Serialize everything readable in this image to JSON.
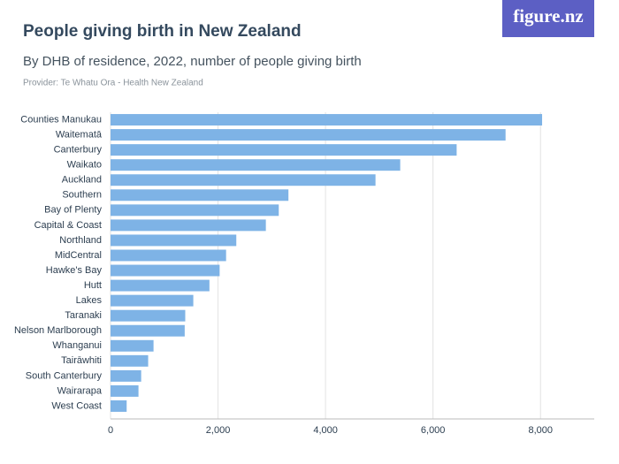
{
  "brand": "figure.nz",
  "chart_data": {
    "type": "bar",
    "orientation": "horizontal",
    "title": "People giving birth in New Zealand",
    "subtitle": "By DHB of residence, 2022, number of people giving birth",
    "source": "Provider: Te Whatu Ora - Health New Zealand",
    "categories": [
      "Counties Manukau",
      "Waitematā",
      "Canterbury",
      "Waikato",
      "Auckland",
      "Southern",
      "Bay of Plenty",
      "Capital & Coast",
      "Northland",
      "MidCentral",
      "Hawke's Bay",
      "Hutt",
      "Lakes",
      "Taranaki",
      "Nelson Marlborough",
      "Whanganui",
      "Tairāwhiti",
      "South Canterbury",
      "Wairarapa",
      "West Coast"
    ],
    "values": [
      8030,
      7350,
      6440,
      5390,
      4930,
      3310,
      3130,
      2890,
      2340,
      2150,
      2030,
      1840,
      1540,
      1390,
      1380,
      800,
      700,
      570,
      520,
      300
    ],
    "color": "#7eb3e6",
    "xlim": [
      0,
      9000
    ],
    "xticks": [
      0,
      {
        "value": 2000,
        "label": "2,000"
      },
      {
        "value": 4000,
        "label": "4,000"
      },
      {
        "value": 6000,
        "label": "6,000"
      },
      {
        "value": 8000,
        "label": "8,000"
      }
    ],
    "grid": true
  }
}
